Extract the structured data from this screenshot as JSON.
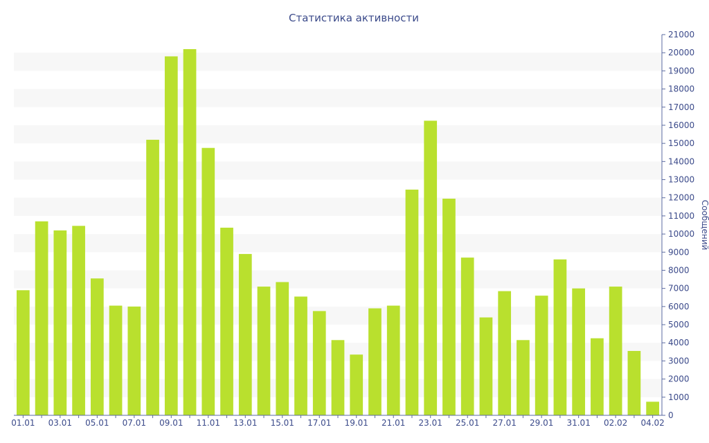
{
  "chart_data": {
    "type": "bar",
    "title": "Статистика активности",
    "xlabel": "",
    "ylabel": "Сообщений",
    "ylim": [
      0,
      21000
    ],
    "ytick_step": 1000,
    "y_axis_side": "right",
    "grid": "alternating horizontal bands",
    "colors": {
      "bar": "#b9e02e",
      "band": "#f7f7f7",
      "text": "#3b4a8a",
      "axis": "#5a6aa0"
    },
    "categories": [
      "01.01",
      "02.01",
      "03.01",
      "04.01",
      "05.01",
      "06.01",
      "07.01",
      "08.01",
      "09.01",
      "10.01",
      "11.01",
      "12.01",
      "13.01",
      "14.01",
      "15.01",
      "16.01",
      "17.01",
      "18.01",
      "19.01",
      "20.01",
      "21.01",
      "22.01",
      "23.01",
      "24.01",
      "25.01",
      "26.01",
      "27.01",
      "28.01",
      "29.01",
      "30.01",
      "31.01",
      "01.02",
      "02.02",
      "03.02",
      "04.02"
    ],
    "xtick_labels": [
      "01.01",
      "03.01",
      "05.01",
      "07.01",
      "09.01",
      "11.01",
      "13.01",
      "15.01",
      "17.01",
      "19.01",
      "21.01",
      "23.01",
      "25.01",
      "27.01",
      "29.01",
      "31.01",
      "02.02",
      "04.02"
    ],
    "values": [
      6900,
      10700,
      10200,
      10450,
      7550,
      6050,
      6000,
      15200,
      19800,
      20200,
      14750,
      10350,
      8900,
      7100,
      7350,
      6550,
      5750,
      4150,
      3350,
      5900,
      6050,
      12450,
      16250,
      11950,
      8700,
      5400,
      6850,
      4150,
      6600,
      8600,
      7000,
      4250,
      7100,
      3550,
      750
    ]
  }
}
